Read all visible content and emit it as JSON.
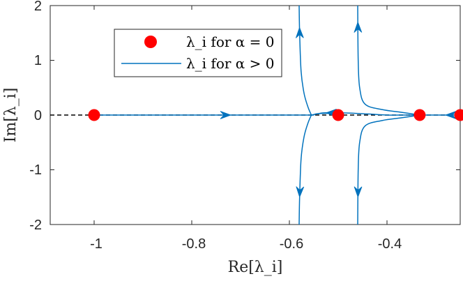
{
  "chart_data": {
    "type": "line",
    "xlabel": "Re[λ_i]",
    "ylabel": "Im[λ_i]",
    "xlim": [
      -1.09,
      -0.25
    ],
    "ylim": [
      -2,
      2
    ],
    "x_ticks": [
      "-1",
      "-0.8",
      "-0.6",
      "-0.4"
    ],
    "y_ticks": [
      "-2",
      "-1",
      "0",
      "1",
      "2"
    ],
    "grid": false,
    "legend": {
      "placement": "top-left",
      "entries": [
        {
          "label": "λ_i for α = 0",
          "marker": "filled-circle",
          "color": "#ff0000"
        },
        {
          "label": "λ_i for α > 0",
          "marker": "line",
          "color": "#0072bd"
        }
      ]
    },
    "reference_line": {
      "y": 0,
      "style": "dashed",
      "color": "#000000"
    },
    "eigenvalues_alpha_zero": [
      {
        "x": -1.0,
        "y": 0
      },
      {
        "x": -0.5,
        "y": 0
      },
      {
        "x": -0.333,
        "y": 0
      },
      {
        "x": -0.25,
        "y": 0
      }
    ],
    "loci": [
      {
        "points": [
          [
            -1.0,
            0
          ],
          [
            -0.55,
            0
          ]
        ],
        "arrows_at_x": [
          -0.72
        ]
      },
      {
        "points": [
          [
            -0.25,
            0
          ],
          [
            -0.31,
            0
          ],
          [
            -0.36,
            0
          ],
          [
            -0.4,
            0.0
          ],
          [
            -0.44,
            0.02
          ],
          [
            -0.49,
            0.04
          ],
          [
            -0.53,
            0.04
          ],
          [
            -0.555,
            0.0
          ]
        ],
        "arrows_at_x": [
          -0.28,
          -0.525
        ]
      },
      {
        "points": [
          [
            -0.5,
            0
          ],
          [
            -0.52,
            0.03
          ],
          [
            -0.545,
            0.02
          ],
          [
            -0.55,
            0
          ]
        ]
      },
      {
        "points": [
          [
            -0.555,
            0.0
          ],
          [
            -0.562,
            0.15
          ],
          [
            -0.57,
            0.4
          ],
          [
            -0.576,
            0.8
          ],
          [
            -0.579,
            1.5
          ],
          [
            -0.58,
            2.0
          ]
        ],
        "arrows_at_y": [
          1.6
        ]
      },
      {
        "points": [
          [
            -0.555,
            0.0
          ],
          [
            -0.562,
            -0.15
          ],
          [
            -0.57,
            -0.4
          ],
          [
            -0.576,
            -0.8
          ],
          [
            -0.579,
            -1.5
          ],
          [
            -0.58,
            -2.0
          ]
        ],
        "arrows_at_y": [
          -1.5
        ]
      },
      {
        "points": [
          [
            -0.333,
            0
          ],
          [
            -0.37,
            0.05
          ],
          [
            -0.41,
            0.1
          ],
          [
            -0.445,
            0.2
          ],
          [
            -0.456,
            0.5
          ],
          [
            -0.459,
            1.0
          ],
          [
            -0.46,
            2.0
          ]
        ],
        "arrows_at_y": [
          1.7
        ]
      },
      {
        "points": [
          [
            -0.333,
            0
          ],
          [
            -0.37,
            -0.05
          ],
          [
            -0.41,
            -0.1
          ],
          [
            -0.445,
            -0.2
          ],
          [
            -0.456,
            -0.5
          ],
          [
            -0.459,
            -1.0
          ],
          [
            -0.46,
            -2.0
          ]
        ],
        "arrows_at_y": [
          -1.5
        ]
      }
    ]
  },
  "colors": {
    "alpha_zero": "#ff0000",
    "alpha_positive": "#0072bd",
    "axis": "#262626"
  }
}
